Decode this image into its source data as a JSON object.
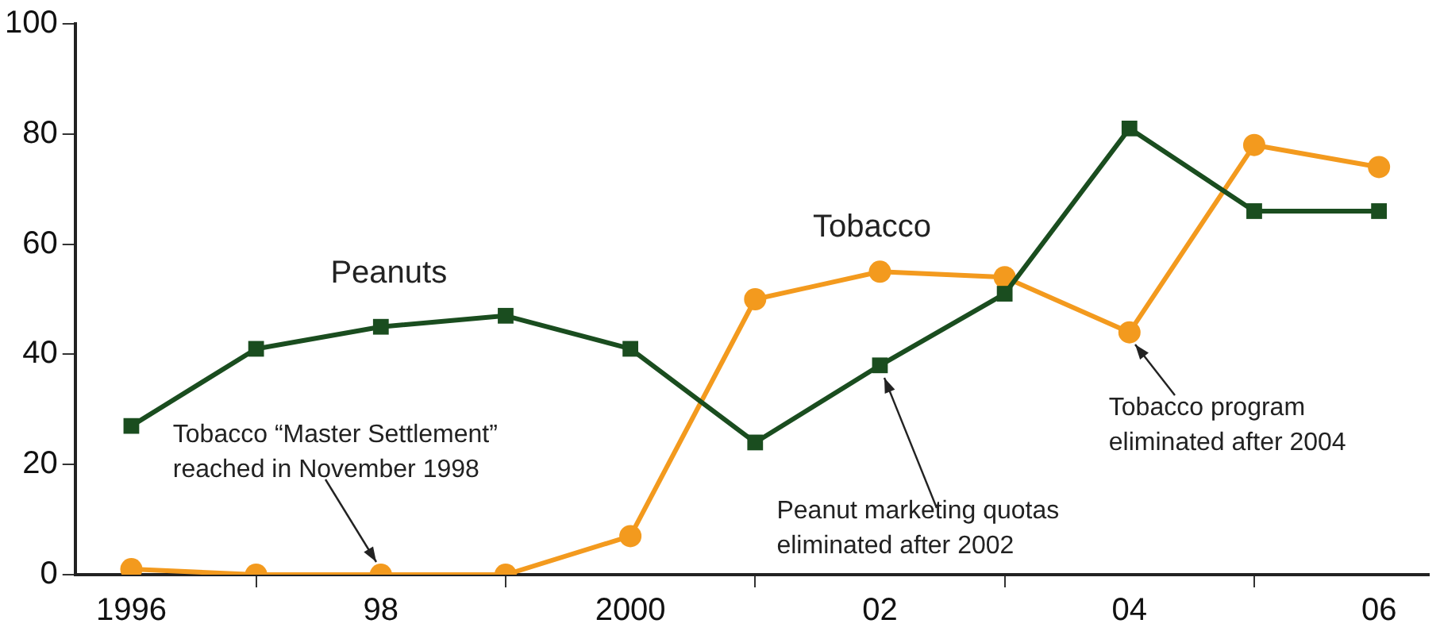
{
  "chart_data": {
    "type": "line",
    "x": [
      1996,
      1997,
      1998,
      1999,
      2000,
      2001,
      2002,
      2003,
      2004,
      2005,
      2006
    ],
    "series": [
      {
        "name": "Peanuts",
        "color": "#1a4d1f",
        "marker": "square",
        "values": [
          27,
          41,
          45,
          47,
          41,
          24,
          38,
          51,
          81,
          66,
          66
        ]
      },
      {
        "name": "Tobacco",
        "color": "#f39a1e",
        "marker": "circle",
        "values": [
          1,
          0,
          0,
          0,
          7,
          50,
          55,
          54,
          44,
          78,
          74
        ]
      }
    ],
    "xlim": [
      1995.55,
      2006.4
    ],
    "xticks": [
      1996,
      {
        "value": 1997,
        "label": null
      },
      {
        "value": 1998,
        "label": "98"
      },
      {
        "value": 1999,
        "label": null
      },
      2000,
      {
        "value": 2001,
        "label": null
      },
      {
        "value": 2002,
        "label": "02"
      },
      {
        "value": 2003,
        "label": null
      },
      {
        "value": 2004,
        "label": "04"
      },
      {
        "value": 2005,
        "label": null
      },
      {
        "value": 2006,
        "label": "06"
      }
    ],
    "ylim": [
      0,
      100
    ],
    "yticks": [
      0,
      20,
      40,
      60,
      80,
      100
    ],
    "grid": false,
    "legend": false,
    "line_style": "solid",
    "annotations": [
      {
        "text": "Tobacco “Master Settlement”\nreached in November 1998",
        "x": 1998,
        "y": 0
      },
      {
        "text": "Peanut marketing quotas\neliminated after 2002",
        "x": 2002,
        "y": 38
      },
      {
        "text": "Tobacco program\neliminated after 2004",
        "x": 2004,
        "y": 44
      }
    ]
  }
}
